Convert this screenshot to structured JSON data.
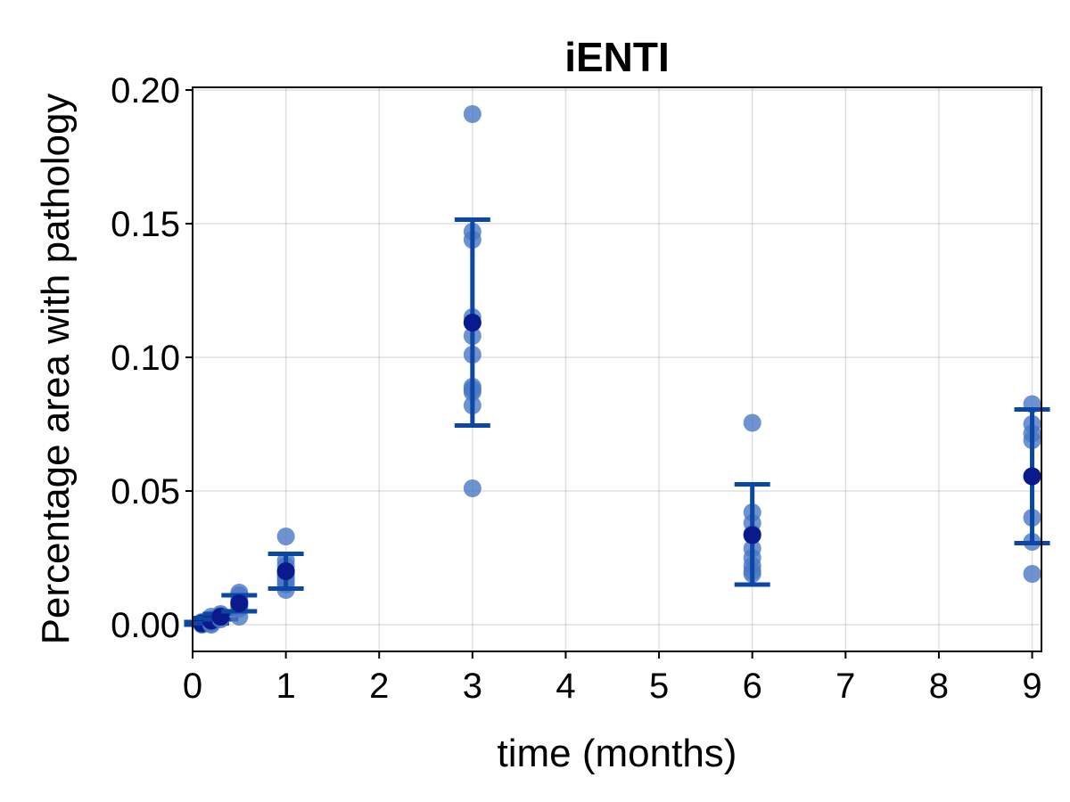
{
  "chart_data": {
    "type": "scatter",
    "title": "iENTI",
    "xlabel": "time (months)",
    "ylabel": "Percentage area with pathology",
    "xlim": [
      0,
      9.1
    ],
    "ylim": [
      -0.01,
      0.201
    ],
    "xticks": [
      0,
      1,
      2,
      3,
      4,
      5,
      6,
      7,
      8,
      9
    ],
    "xtick_labels": [
      "0",
      "1",
      "2",
      "3",
      "4",
      "5",
      "6",
      "7",
      "8",
      "9"
    ],
    "yticks": [
      0.0,
      0.05,
      0.1,
      0.15,
      0.2
    ],
    "ytick_labels": [
      "0.00",
      "0.05",
      "0.10",
      "0.15",
      "0.20"
    ],
    "grid": true,
    "colors": {
      "points": "#4a78c4",
      "error_bars": "#0b47a3",
      "mean": "#0a1a8c"
    },
    "groups": [
      {
        "x": 0.1,
        "points": [
          0.0,
          0.0005,
          0.001,
          0.0002,
          0.0008,
          0.0003
        ],
        "mean": 0.0005,
        "lower": 0.0,
        "upper": 0.001
      },
      {
        "x": 0.2,
        "points": [
          0.0,
          0.001,
          0.002,
          0.0015,
          0.0005,
          0.003
        ],
        "mean": 0.0015,
        "lower": 0.0005,
        "upper": 0.0025
      },
      {
        "x": 0.3,
        "points": [
          0.002,
          0.003,
          0.004,
          0.0035,
          0.0025
        ],
        "mean": 0.003,
        "lower": 0.002,
        "upper": 0.004
      },
      {
        "x": 0.5,
        "points": [
          0.003,
          0.006,
          0.008,
          0.009,
          0.011,
          0.012,
          0.007
        ],
        "mean": 0.008,
        "lower": 0.005,
        "upper": 0.011
      },
      {
        "x": 1,
        "points": [
          0.033,
          0.024,
          0.022,
          0.02,
          0.018,
          0.017,
          0.015,
          0.013,
          0.019,
          0.016
        ],
        "mean": 0.02,
        "lower": 0.0135,
        "upper": 0.0265
      },
      {
        "x": 3,
        "points": [
          0.191,
          0.147,
          0.144,
          0.115,
          0.113,
          0.108,
          0.101,
          0.089,
          0.088,
          0.087,
          0.082,
          0.051
        ],
        "mean": 0.113,
        "lower": 0.0745,
        "upper": 0.1515
      },
      {
        "x": 6,
        "points": [
          0.0755,
          0.042,
          0.038,
          0.034,
          0.0285,
          0.025,
          0.022,
          0.019,
          0.02
        ],
        "mean": 0.0335,
        "lower": 0.015,
        "upper": 0.0525
      },
      {
        "x": 9,
        "points": [
          0.0825,
          0.075,
          0.0715,
          0.069,
          0.0555,
          0.04,
          0.031,
          0.019
        ],
        "mean": 0.0555,
        "lower": 0.0305,
        "upper": 0.0805
      }
    ]
  }
}
